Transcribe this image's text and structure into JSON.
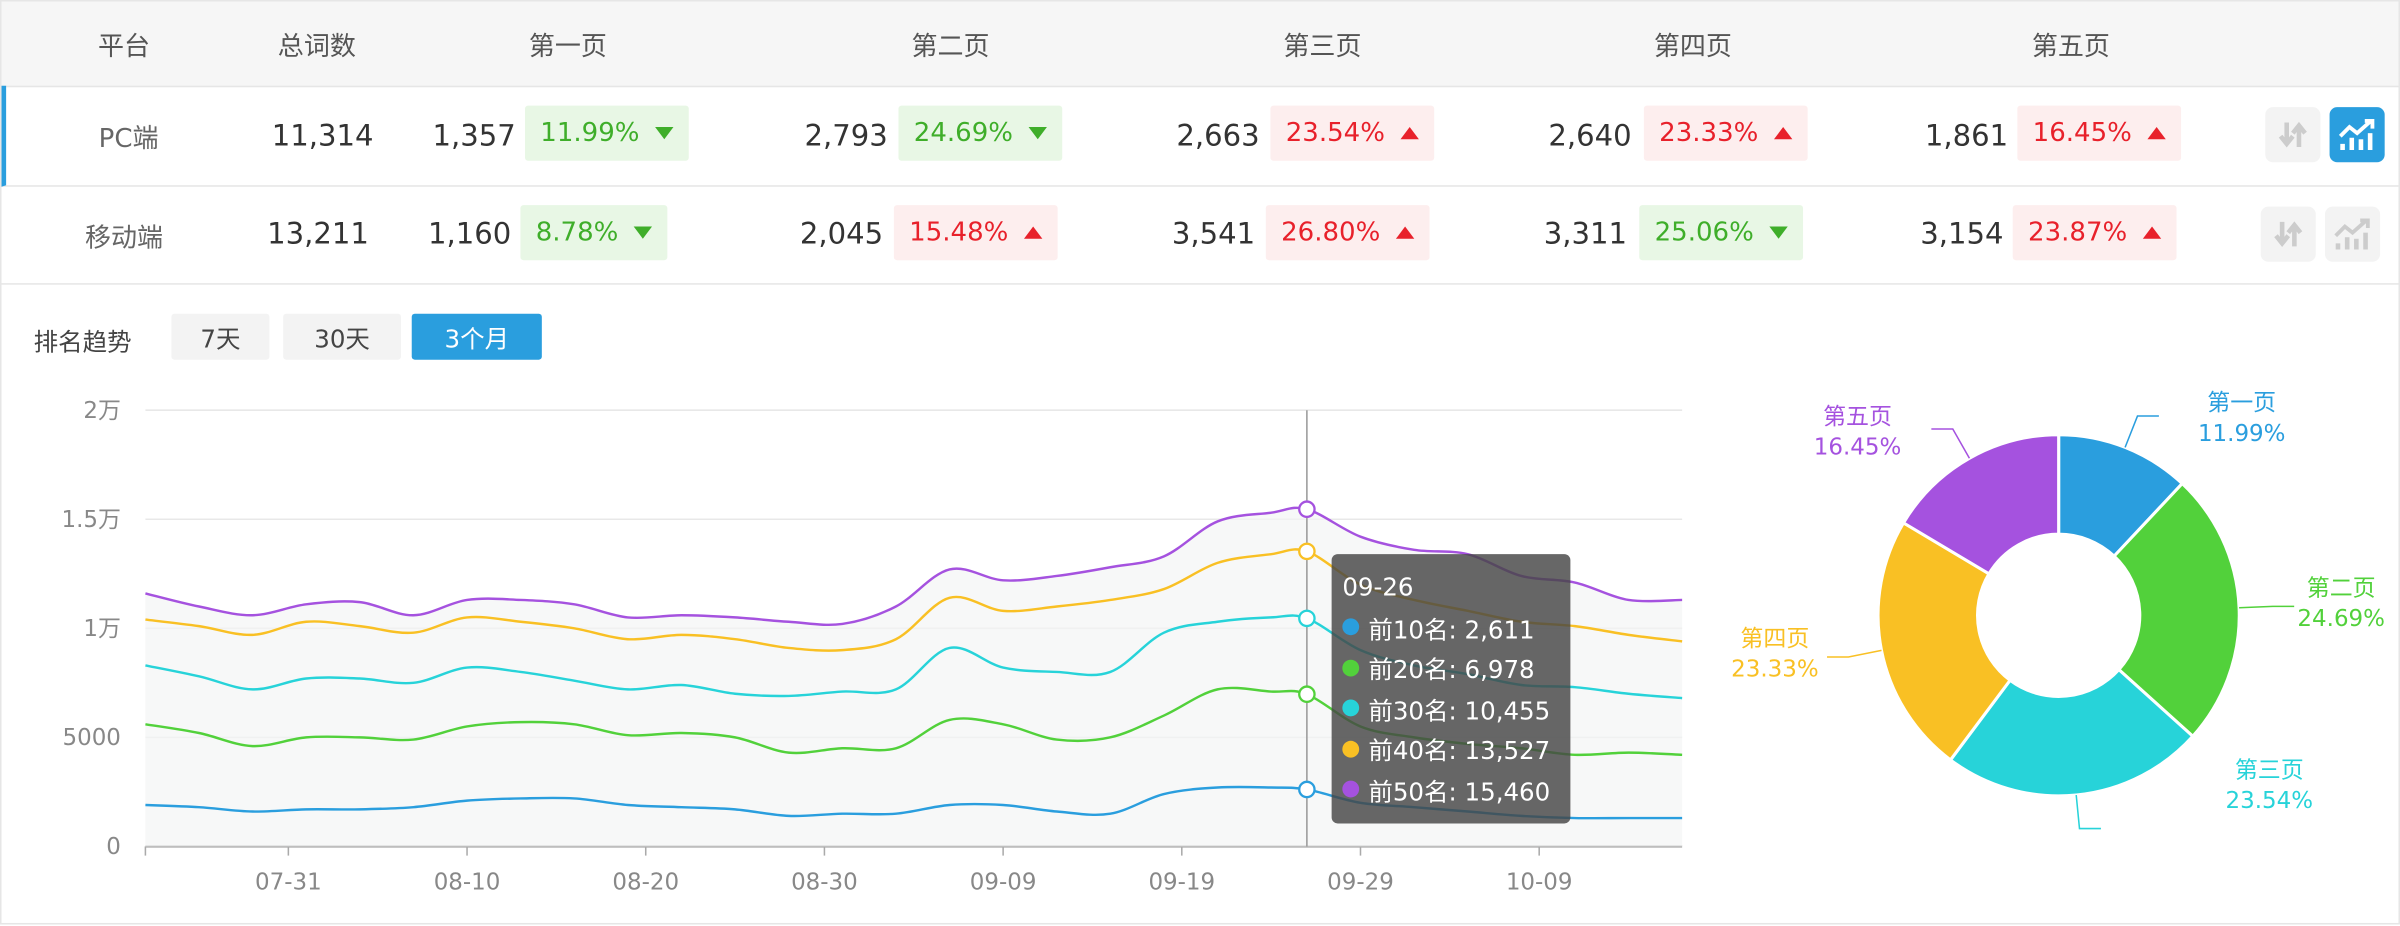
{
  "table": {
    "headers": [
      "平台",
      "总词数",
      "第一页",
      "第二页",
      "第三页",
      "第四页",
      "第五页"
    ],
    "rows": [
      {
        "platform": "PC端",
        "total": "11,314",
        "pages": [
          {
            "count": "1,357",
            "pct": "11.99%",
            "dir": "down"
          },
          {
            "count": "2,793",
            "pct": "24.69%",
            "dir": "down"
          },
          {
            "count": "2,663",
            "pct": "23.54%",
            "dir": "up"
          },
          {
            "count": "2,640",
            "pct": "23.33%",
            "dir": "up"
          },
          {
            "count": "1,861",
            "pct": "16.45%",
            "dir": "up"
          }
        ],
        "chart_active": true
      },
      {
        "platform": "移动端",
        "total": "13,211",
        "pages": [
          {
            "count": "1,160",
            "pct": "8.78%",
            "dir": "down"
          },
          {
            "count": "2,045",
            "pct": "15.48%",
            "dir": "up"
          },
          {
            "count": "3,541",
            "pct": "26.80%",
            "dir": "up"
          },
          {
            "count": "3,311",
            "pct": "25.06%",
            "dir": "down"
          },
          {
            "count": "3,154",
            "pct": "23.87%",
            "dir": "up"
          }
        ],
        "chart_active": false
      }
    ],
    "icons": {
      "sort": "sort-arrows-icon",
      "chart": "trend-chart-icon"
    }
  },
  "trend": {
    "label": "排名趋势",
    "ranges": [
      "7天",
      "30天",
      "3个月"
    ],
    "active_range": "3个月"
  },
  "tooltip": {
    "date": "09-26",
    "items": [
      {
        "label": "前10名: 2,611",
        "color": "#2a9ede"
      },
      {
        "label": "前20名: 6,978",
        "color": "#52d13b"
      },
      {
        "label": "前30名: 10,455",
        "color": "#27d3d9"
      },
      {
        "label": "前40名: 13,527",
        "color": "#f9c024"
      },
      {
        "label": "前50名: 15,460",
        "color": "#a552df"
      }
    ]
  },
  "colors": {
    "accent": "#2a9ede",
    "up": "#e8212b",
    "down": "#3fae2a"
  },
  "chart_data": [
    {
      "type": "line",
      "x": [
        "07-23",
        "07-26",
        "07-29",
        "08-01",
        "08-04",
        "08-07",
        "08-10",
        "08-13",
        "08-16",
        "08-19",
        "08-22",
        "08-25",
        "08-28",
        "08-31",
        "09-03",
        "09-06",
        "09-09",
        "09-12",
        "09-15",
        "09-18",
        "09-21",
        "09-24",
        "09-26",
        "09-29",
        "10-02",
        "10-05",
        "10-08",
        "10-11",
        "10-14",
        "10-17"
      ],
      "x_ticks": [
        "07-31",
        "08-10",
        "08-20",
        "08-30",
        "09-09",
        "09-19",
        "09-29",
        "10-09"
      ],
      "y_ticks": [
        {
          "v": 0,
          "label": "0"
        },
        {
          "v": 5000,
          "label": "5000"
        },
        {
          "v": 10000,
          "label": "1万"
        },
        {
          "v": 15000,
          "label": "1.5万"
        },
        {
          "v": 20000,
          "label": "2万"
        }
      ],
      "ylim": [
        0,
        20000
      ],
      "grid": true,
      "highlight_x": "09-26",
      "series": [
        {
          "name": "前10名",
          "color": "#2a9ede",
          "values": [
            1900,
            1800,
            1600,
            1700,
            1700,
            1800,
            2100,
            2200,
            2200,
            1900,
            1800,
            1700,
            1400,
            1500,
            1500,
            1900,
            1900,
            1600,
            1500,
            2400,
            2700,
            2700,
            2611,
            2000,
            1800,
            1600,
            1400,
            1300,
            1300,
            1300
          ]
        },
        {
          "name": "前20名",
          "color": "#52d13b",
          "values": [
            5600,
            5200,
            4600,
            5000,
            5000,
            4900,
            5500,
            5700,
            5600,
            5100,
            5200,
            5000,
            4300,
            4500,
            4500,
            5800,
            5600,
            4900,
            5000,
            6000,
            7200,
            7100,
            6978,
            5500,
            5000,
            4700,
            4500,
            4200,
            4300,
            4200
          ]
        },
        {
          "name": "前30名",
          "color": "#27d3d9",
          "values": [
            8300,
            7800,
            7200,
            7700,
            7700,
            7500,
            8200,
            8000,
            7600,
            7200,
            7400,
            7000,
            6900,
            7100,
            7200,
            9100,
            8200,
            8000,
            8000,
            9800,
            10300,
            10500,
            10455,
            9000,
            8300,
            7900,
            7400,
            7300,
            7000,
            6800
          ]
        },
        {
          "name": "前40名",
          "color": "#f9c024",
          "values": [
            10400,
            10100,
            9700,
            10300,
            10100,
            9800,
            10500,
            10300,
            10000,
            9500,
            9700,
            9500,
            9100,
            9000,
            9500,
            11400,
            10800,
            11000,
            11300,
            11800,
            13000,
            13400,
            13527,
            12000,
            11300,
            10800,
            10300,
            10100,
            9700,
            9400
          ]
        },
        {
          "name": "前50名",
          "color": "#a552df",
          "values": [
            11600,
            11000,
            10600,
            11100,
            11200,
            10600,
            11300,
            11300,
            11100,
            10500,
            10600,
            10500,
            10300,
            10200,
            11000,
            12700,
            12200,
            12400,
            12800,
            13300,
            14900,
            15300,
            15460,
            14200,
            13600,
            13400,
            12400,
            12100,
            11300,
            11300
          ]
        }
      ]
    },
    {
      "type": "pie",
      "donut": true,
      "slices": [
        {
          "name": "第一页",
          "value": 11.99,
          "label": "11.99%",
          "color": "#2a9ede"
        },
        {
          "name": "第二页",
          "value": 24.69,
          "label": "24.69%",
          "color": "#52d13b"
        },
        {
          "name": "第三页",
          "value": 23.54,
          "label": "23.54%",
          "color": "#27d3d9"
        },
        {
          "name": "第四页",
          "value": 23.33,
          "label": "23.33%",
          "color": "#f9c024"
        },
        {
          "name": "第五页",
          "value": 16.45,
          "label": "16.45%",
          "color": "#a552df"
        }
      ]
    }
  ]
}
